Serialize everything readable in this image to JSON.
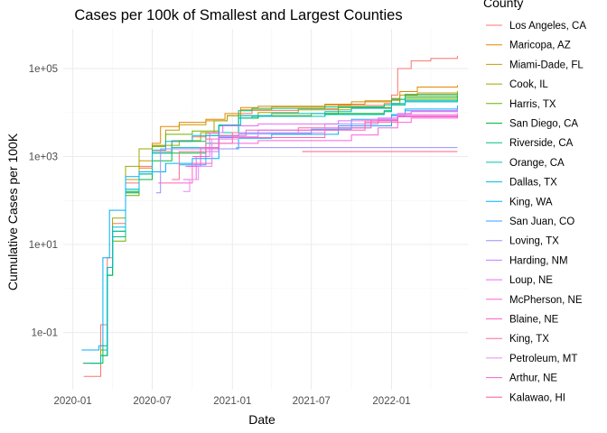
{
  "chart_data": {
    "type": "line",
    "title": "Cases per 100k of Smallest and Largest Counties",
    "xlabel": "Date",
    "ylabel": "Cumulative Cases per 100K",
    "x_scale": "date",
    "y_scale": "log10",
    "xlim": [
      "2019-12-10",
      "2022-06-25"
    ],
    "ylim": [
      0.005,
      800000
    ],
    "x_ticks": [
      "2020-01-01",
      "2020-07-01",
      "2021-01-01",
      "2021-07-01",
      "2022-01-01"
    ],
    "x_tick_labels": [
      "2020-01",
      "2020-07",
      "2021-01",
      "2021-07",
      "2022-01"
    ],
    "y_ticks": [
      0.1,
      10,
      1000,
      100000
    ],
    "y_tick_labels": [
      "1e-01",
      "1e+01",
      "1e+03",
      "1e+05"
    ],
    "grid": true,
    "legend": {
      "title": "County",
      "position": "right"
    },
    "series": [
      {
        "name": "Los Angeles, CA",
        "color": "#F8766D",
        "points": [
          [
            "2020-01-26",
            0.01
          ],
          [
            "2020-03-05",
            0.15
          ],
          [
            "2020-03-20",
            5
          ],
          [
            "2020-04-01",
            30
          ],
          [
            "2020-05-01",
            250
          ],
          [
            "2020-06-01",
            600
          ],
          [
            "2020-07-01",
            1300
          ],
          [
            "2020-08-15",
            2300
          ],
          [
            "2020-10-01",
            2800
          ],
          [
            "2020-11-01",
            3400
          ],
          [
            "2020-12-01",
            5000
          ],
          [
            "2021-01-15",
            9500
          ],
          [
            "2021-02-15",
            11200
          ],
          [
            "2021-06-01",
            12300
          ],
          [
            "2021-09-01",
            14500
          ],
          [
            "2021-12-15",
            16000
          ],
          [
            "2022-01-01",
            25000
          ],
          [
            "2022-01-15",
            100000
          ],
          [
            "2022-02-15",
            150000
          ],
          [
            "2022-04-01",
            170000
          ],
          [
            "2022-06-01",
            195000
          ]
        ]
      },
      {
        "name": "Maricopa, AZ",
        "color": "#E58700",
        "points": [
          [
            "2020-01-26",
            0.02
          ],
          [
            "2020-03-05",
            0.03
          ],
          [
            "2020-03-20",
            3
          ],
          [
            "2020-04-01",
            15
          ],
          [
            "2020-05-01",
            150
          ],
          [
            "2020-06-01",
            550
          ],
          [
            "2020-07-01",
            2000
          ],
          [
            "2020-07-20",
            4800
          ],
          [
            "2020-09-01",
            6000
          ],
          [
            "2020-11-01",
            7000
          ],
          [
            "2020-12-15",
            9500
          ],
          [
            "2021-01-20",
            13000
          ],
          [
            "2021-03-01",
            14000
          ],
          [
            "2021-08-01",
            15500
          ],
          [
            "2021-11-01",
            18500
          ],
          [
            "2022-01-01",
            21000
          ],
          [
            "2022-01-20",
            30000
          ],
          [
            "2022-03-01",
            38000
          ],
          [
            "2022-06-01",
            42000
          ]
        ]
      },
      {
        "name": "Miami-Dade, FL",
        "color": "#C99800",
        "points": [
          [
            "2020-03-10",
            0.03
          ],
          [
            "2020-03-20",
            2
          ],
          [
            "2020-04-01",
            20
          ],
          [
            "2020-05-01",
            300
          ],
          [
            "2020-06-01",
            800
          ],
          [
            "2020-07-01",
            1700
          ],
          [
            "2020-08-01",
            4000
          ],
          [
            "2020-09-01",
            5300
          ],
          [
            "2020-11-01",
            6500
          ],
          [
            "2020-12-20",
            8500
          ],
          [
            "2021-01-20",
            11500
          ],
          [
            "2021-04-01",
            13500
          ],
          [
            "2021-08-01",
            15000
          ],
          [
            "2021-10-01",
            17500
          ],
          [
            "2022-01-01",
            19000
          ],
          [
            "2022-01-20",
            25000
          ],
          [
            "2022-03-01",
            28000
          ],
          [
            "2022-06-01",
            31000
          ]
        ]
      },
      {
        "name": "Cook, IL",
        "color": "#A3A500",
        "points": [
          [
            "2020-01-24",
            0.02
          ],
          [
            "2020-03-05",
            0.04
          ],
          [
            "2020-03-20",
            3
          ],
          [
            "2020-04-01",
            40
          ],
          [
            "2020-05-01",
            600
          ],
          [
            "2020-06-01",
            1500
          ],
          [
            "2020-07-01",
            1800
          ],
          [
            "2020-09-01",
            2300
          ],
          [
            "2020-10-20",
            3500
          ],
          [
            "2020-11-20",
            6500
          ],
          [
            "2020-12-20",
            8500
          ],
          [
            "2021-03-01",
            10000
          ],
          [
            "2021-06-01",
            11500
          ],
          [
            "2021-10-01",
            13000
          ],
          [
            "2022-01-01",
            20000
          ],
          [
            "2022-02-01",
            24000
          ],
          [
            "2022-06-01",
            25500
          ]
        ]
      },
      {
        "name": "Harris, TX",
        "color": "#6BB100",
        "points": [
          [
            "2020-03-05",
            0.03
          ],
          [
            "2020-03-20",
            2
          ],
          [
            "2020-04-01",
            12
          ],
          [
            "2020-05-01",
            130
          ],
          [
            "2020-06-01",
            400
          ],
          [
            "2020-07-01",
            1700
          ],
          [
            "2020-08-01",
            3200
          ],
          [
            "2020-10-01",
            3800
          ],
          [
            "2020-12-01",
            5200
          ],
          [
            "2021-01-15",
            7500
          ],
          [
            "2021-03-01",
            8500
          ],
          [
            "2021-07-01",
            9500
          ],
          [
            "2021-09-01",
            13000
          ],
          [
            "2022-01-01",
            16000
          ],
          [
            "2022-01-20",
            20000
          ],
          [
            "2022-06-01",
            22500
          ]
        ]
      },
      {
        "name": "San Diego, CA",
        "color": "#00BA38",
        "points": [
          [
            "2020-02-10",
            0.02
          ],
          [
            "2020-03-10",
            0.05
          ],
          [
            "2020-03-20",
            2
          ],
          [
            "2020-04-01",
            20
          ],
          [
            "2020-05-01",
            160
          ],
          [
            "2020-06-01",
            300
          ],
          [
            "2020-07-01",
            800
          ],
          [
            "2020-08-15",
            1200
          ],
          [
            "2020-11-01",
            1600
          ],
          [
            "2020-12-01",
            3000
          ],
          [
            "2021-01-15",
            7500
          ],
          [
            "2021-03-01",
            8200
          ],
          [
            "2021-08-01",
            9500
          ],
          [
            "2021-12-15",
            11000
          ],
          [
            "2022-01-01",
            15000
          ],
          [
            "2022-02-01",
            22000
          ],
          [
            "2022-06-01",
            24500
          ]
        ]
      },
      {
        "name": "Riverside, CA",
        "color": "#00BF7D",
        "points": [
          [
            "2020-03-05",
            0.03
          ],
          [
            "2020-03-20",
            2
          ],
          [
            "2020-04-01",
            15
          ],
          [
            "2020-05-01",
            150
          ],
          [
            "2020-06-01",
            400
          ],
          [
            "2020-07-01",
            1200
          ],
          [
            "2020-08-15",
            2200
          ],
          [
            "2020-11-01",
            3000
          ],
          [
            "2020-12-01",
            5000
          ],
          [
            "2021-01-15",
            11000
          ],
          [
            "2021-02-15",
            12500
          ],
          [
            "2021-08-01",
            13500
          ],
          [
            "2021-12-15",
            15000
          ],
          [
            "2022-01-01",
            20000
          ],
          [
            "2022-02-01",
            26000
          ],
          [
            "2022-06-01",
            28000
          ]
        ]
      },
      {
        "name": "Orange, CA",
        "color": "#00C0AF",
        "points": [
          [
            "2020-01-26",
            0.02
          ],
          [
            "2020-03-05",
            0.03
          ],
          [
            "2020-03-20",
            3
          ],
          [
            "2020-04-01",
            20
          ],
          [
            "2020-05-01",
            180
          ],
          [
            "2020-06-01",
            400
          ],
          [
            "2020-07-01",
            1200
          ],
          [
            "2020-08-15",
            1600
          ],
          [
            "2020-11-01",
            2000
          ],
          [
            "2020-12-01",
            3500
          ],
          [
            "2021-01-15",
            7500
          ],
          [
            "2021-02-15",
            8200
          ],
          [
            "2021-08-01",
            9000
          ],
          [
            "2021-12-15",
            10500
          ],
          [
            "2022-01-01",
            15000
          ],
          [
            "2022-02-01",
            17500
          ],
          [
            "2022-06-01",
            19500
          ]
        ]
      },
      {
        "name": "Dallas, TX",
        "color": "#00BCD8",
        "points": [
          [
            "2020-03-10",
            0.04
          ],
          [
            "2020-03-20",
            3
          ],
          [
            "2020-04-01",
            25
          ],
          [
            "2020-05-01",
            180
          ],
          [
            "2020-06-01",
            450
          ],
          [
            "2020-07-01",
            1400
          ],
          [
            "2020-08-01",
            2200
          ],
          [
            "2020-10-01",
            3000
          ],
          [
            "2020-12-01",
            5200
          ],
          [
            "2021-01-20",
            8500
          ],
          [
            "2021-04-01",
            9500
          ],
          [
            "2021-08-01",
            10500
          ],
          [
            "2021-10-01",
            12500
          ],
          [
            "2022-01-01",
            16000
          ],
          [
            "2022-02-01",
            18500
          ],
          [
            "2022-06-01",
            20000
          ]
        ]
      },
      {
        "name": "King, WA",
        "color": "#00B0F6",
        "points": [
          [
            "2020-01-21",
            0.04
          ],
          [
            "2020-03-01",
            0.05
          ],
          [
            "2020-03-10",
            5
          ],
          [
            "2020-03-25",
            60
          ],
          [
            "2020-05-01",
            350
          ],
          [
            "2020-06-01",
            450
          ],
          [
            "2020-08-01",
            700
          ],
          [
            "2020-10-01",
            900
          ],
          [
            "2020-12-01",
            1500
          ],
          [
            "2021-01-15",
            2600
          ],
          [
            "2021-04-01",
            3200
          ],
          [
            "2021-09-01",
            5000
          ],
          [
            "2022-01-01",
            9000
          ],
          [
            "2022-02-01",
            12000
          ],
          [
            "2022-06-01",
            14500
          ]
        ]
      },
      {
        "name": "San Juan, CO",
        "color": "#35A2FF",
        "points": [
          [
            "2020-09-01",
            650
          ],
          [
            "2020-11-01",
            1300
          ],
          [
            "2020-12-01",
            2700
          ],
          [
            "2021-01-15",
            3300
          ],
          [
            "2021-07-01",
            4200
          ],
          [
            "2021-10-01",
            7000
          ],
          [
            "2022-01-01",
            8500
          ],
          [
            "2022-02-01",
            11000
          ],
          [
            "2022-06-01",
            12500
          ]
        ]
      },
      {
        "name": "Loving, TX",
        "color": "#9590FF",
        "points": [
          [
            "2020-07-10",
            150
          ],
          [
            "2020-07-20",
            1500
          ],
          [
            "2021-01-01",
            1500
          ],
          [
            "2021-01-10",
            1600
          ],
          [
            "2022-06-01",
            1600
          ]
        ]
      },
      {
        "name": "Harding, NM",
        "color": "#C77CFF",
        "points": [
          [
            "2020-09-20",
            600
          ],
          [
            "2020-10-20",
            1300
          ],
          [
            "2020-12-01",
            2800
          ],
          [
            "2021-03-01",
            4000
          ],
          [
            "2021-08-01",
            5500
          ],
          [
            "2021-12-01",
            6800
          ],
          [
            "2022-01-15",
            9000
          ],
          [
            "2022-02-15",
            11000
          ],
          [
            "2022-06-01",
            12500
          ]
        ]
      },
      {
        "name": "Loup, NE",
        "color": "#E76BF3",
        "points": [
          [
            "2020-09-10",
            300
          ],
          [
            "2020-10-10",
            1000
          ],
          [
            "2020-11-10",
            3500
          ],
          [
            "2020-12-10",
            5000
          ],
          [
            "2021-03-01",
            5500
          ],
          [
            "2021-09-01",
            6500
          ],
          [
            "2021-12-01",
            7500
          ],
          [
            "2022-01-15",
            9500
          ],
          [
            "2022-02-15",
            10500
          ],
          [
            "2022-06-01",
            11500
          ]
        ]
      },
      {
        "name": "McPherson, NE",
        "color": "#FA62DB",
        "points": [
          [
            "2020-09-15",
            600
          ],
          [
            "2020-10-20",
            1600
          ],
          [
            "2020-12-01",
            2000
          ],
          [
            "2021-03-01",
            2300
          ],
          [
            "2021-10-01",
            3100
          ],
          [
            "2021-12-01",
            4500
          ],
          [
            "2022-01-15",
            6000
          ],
          [
            "2022-02-15",
            7500
          ],
          [
            "2022-06-01",
            8000
          ]
        ]
      },
      {
        "name": "Blaine, NE",
        "color": "#FF62BC",
        "points": [
          [
            "2020-07-15",
            250
          ],
          [
            "2020-09-01",
            250
          ],
          [
            "2020-10-01",
            700
          ],
          [
            "2020-11-15",
            2000
          ],
          [
            "2021-01-01",
            2700
          ],
          [
            "2021-08-01",
            4000
          ],
          [
            "2021-11-01",
            6500
          ],
          [
            "2022-01-15",
            8500
          ],
          [
            "2022-06-01",
            9000
          ]
        ]
      },
      {
        "name": "King, TX",
        "color": "#FF6C91",
        "points": [
          [
            "2020-08-15",
            300
          ],
          [
            "2020-09-01",
            1300
          ],
          [
            "2020-11-01",
            2500
          ],
          [
            "2021-01-01",
            3500
          ],
          [
            "2021-06-01",
            4500
          ],
          [
            "2021-11-01",
            6000
          ],
          [
            "2022-01-15",
            8000
          ],
          [
            "2022-06-01",
            8500
          ]
        ]
      },
      {
        "name": "Petroleum, MT",
        "color": "#E88AF3",
        "points": [
          [
            "2020-09-10",
            160
          ],
          [
            "2020-09-25",
            300
          ],
          [
            "2020-10-15",
            600
          ],
          [
            "2020-11-15",
            2500
          ],
          [
            "2021-01-15",
            3500
          ],
          [
            "2021-08-01",
            4500
          ],
          [
            "2021-11-15",
            7000
          ],
          [
            "2022-01-15",
            9000
          ],
          [
            "2022-06-01",
            9800
          ]
        ]
      },
      {
        "name": "Arthur, NE",
        "color": "#F061D0",
        "points": [
          [
            "2020-10-01",
            1000
          ],
          [
            "2020-11-01",
            1500
          ],
          [
            "2020-12-01",
            3000
          ],
          [
            "2021-02-01",
            4000
          ],
          [
            "2021-09-01",
            4500
          ],
          [
            "2021-11-15",
            6500
          ],
          [
            "2022-01-15",
            8000
          ],
          [
            "2022-06-01",
            8500
          ]
        ]
      },
      {
        "name": "Kalawao, HI",
        "color": "#FF5C8C",
        "points": [
          [
            "2021-06-10",
            1300
          ],
          [
            "2022-06-01",
            1300
          ]
        ]
      }
    ]
  }
}
